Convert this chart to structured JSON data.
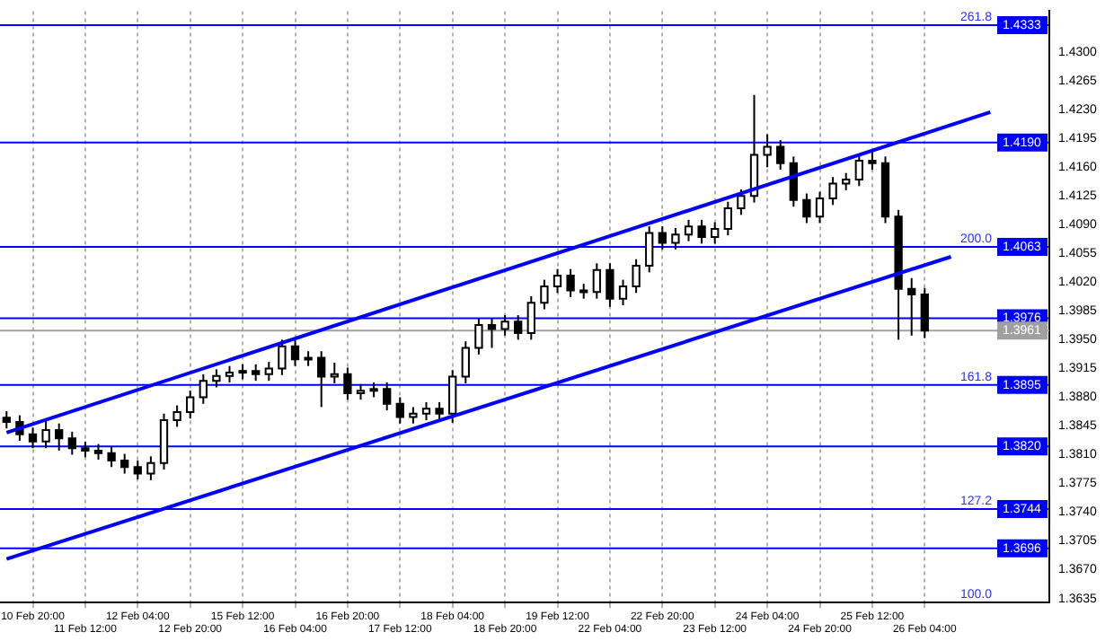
{
  "chart_data": {
    "type": "candlestick",
    "categories": [
      null,
      null,
      "10 Feb 20:00",
      null,
      null,
      null,
      "11 Feb 12:00",
      null,
      null,
      null,
      "12 Feb 04:00",
      null,
      null,
      null,
      "12 Feb 20:00",
      null,
      null,
      null,
      "15 Feb 12:00",
      null,
      null,
      null,
      "16 Feb 04:00",
      null,
      null,
      null,
      "16 Feb 20:00",
      null,
      null,
      null,
      "17 Feb 12:00",
      null,
      null,
      null,
      "18 Feb 04:00",
      null,
      null,
      null,
      "18 Feb 20:00",
      null,
      null,
      null,
      "19 Feb 12:00",
      null,
      null,
      null,
      "22 Feb 04:00",
      null,
      null,
      null,
      "22 Feb 20:00",
      null,
      null,
      null,
      "23 Feb 12:00",
      null,
      null,
      null,
      "24 Feb 04:00",
      null,
      null,
      null,
      "24 Feb 20:00",
      null,
      null,
      null,
      "25 Feb 12:00",
      null,
      null,
      null,
      "26 Feb 04:00",
      null,
      null,
      null,
      null,
      null,
      null,
      null,
      null,
      null
    ],
    "ohlc": [
      [
        1.3855,
        1.3863,
        1.3842,
        1.385
      ],
      [
        1.385,
        1.3858,
        1.3827,
        1.3835
      ],
      [
        1.3835,
        1.3843,
        1.3818,
        1.3826
      ],
      [
        1.3826,
        1.3853,
        1.3818,
        1.384
      ],
      [
        1.384,
        1.3848,
        1.3815,
        1.383
      ],
      [
        1.383,
        1.3838,
        1.381,
        1.3818
      ],
      [
        1.3818,
        1.3826,
        1.3807,
        1.3815
      ],
      [
        1.3815,
        1.3823,
        1.3804,
        1.3812
      ],
      [
        1.3812,
        1.382,
        1.3795,
        1.3803
      ],
      [
        1.3803,
        1.3811,
        1.3787,
        1.3795
      ],
      [
        1.3795,
        1.3803,
        1.378,
        1.3787
      ],
      [
        1.3787,
        1.3808,
        1.3779,
        1.38
      ],
      [
        1.38,
        1.386,
        1.3792,
        1.3852
      ],
      [
        1.3852,
        1.387,
        1.3844,
        1.3862
      ],
      [
        1.3862,
        1.3888,
        1.3854,
        1.388
      ],
      [
        1.388,
        1.3908,
        1.3872,
        1.39
      ],
      [
        1.39,
        1.3914,
        1.3892,
        1.3906
      ],
      [
        1.3906,
        1.3918,
        1.3898,
        1.391
      ],
      [
        1.391,
        1.392,
        1.3902,
        1.3912
      ],
      [
        1.3912,
        1.392,
        1.39,
        1.3908
      ],
      [
        1.3908,
        1.3923,
        1.39,
        1.3915
      ],
      [
        1.3915,
        1.395,
        1.3907,
        1.3942
      ],
      [
        1.3942,
        1.395,
        1.3918,
        1.3926
      ],
      [
        1.3926,
        1.3936,
        1.3918,
        1.3928
      ],
      [
        1.3928,
        1.3936,
        1.3868,
        1.3905
      ],
      [
        1.3905,
        1.3922,
        1.3897,
        1.3908
      ],
      [
        1.3908,
        1.3916,
        1.3877,
        1.3885
      ],
      [
        1.3885,
        1.3896,
        1.3877,
        1.3888
      ],
      [
        1.3888,
        1.3898,
        1.388,
        1.389
      ],
      [
        1.389,
        1.3898,
        1.3864,
        1.3872
      ],
      [
        1.3872,
        1.388,
        1.3848,
        1.3856
      ],
      [
        1.3856,
        1.3868,
        1.3848,
        1.386
      ],
      [
        1.386,
        1.3874,
        1.3852,
        1.3866
      ],
      [
        1.3866,
        1.3874,
        1.3852,
        1.386
      ],
      [
        1.386,
        1.3913,
        1.3849,
        1.3905
      ],
      [
        1.3905,
        1.3948,
        1.3897,
        1.394
      ],
      [
        1.394,
        1.3976,
        1.3932,
        1.3968
      ],
      [
        1.3968,
        1.3976,
        1.394,
        1.3963
      ],
      [
        1.3963,
        1.398,
        1.3955,
        1.3972
      ],
      [
        1.3972,
        1.398,
        1.395,
        1.3958
      ],
      [
        1.3958,
        1.4003,
        1.395,
        1.3995
      ],
      [
        1.3995,
        1.4023,
        1.3987,
        1.4015
      ],
      [
        1.4015,
        1.4036,
        1.4007,
        1.4028
      ],
      [
        1.4028,
        1.4036,
        1.4002,
        1.401
      ],
      [
        1.401,
        1.4018,
        1.4,
        1.4008
      ],
      [
        1.4008,
        1.4043,
        1.4,
        1.4035
      ],
      [
        1.4035,
        1.4043,
        1.399,
        1.4
      ],
      [
        1.4,
        1.4023,
        1.3992,
        1.4015
      ],
      [
        1.4015,
        1.4048,
        1.4007,
        1.404
      ],
      [
        1.404,
        1.4088,
        1.4032,
        1.408
      ],
      [
        1.408,
        1.4088,
        1.406,
        1.4068
      ],
      [
        1.4068,
        1.4086,
        1.406,
        1.4078
      ],
      [
        1.4078,
        1.4096,
        1.407,
        1.4088
      ],
      [
        1.4088,
        1.4096,
        1.4067,
        1.4075
      ],
      [
        1.4075,
        1.4093,
        1.4067,
        1.4085
      ],
      [
        1.4085,
        1.4118,
        1.4077,
        1.411
      ],
      [
        1.411,
        1.4133,
        1.4102,
        1.4125
      ],
      [
        1.4125,
        1.4248,
        1.4117,
        1.4175
      ],
      [
        1.4175,
        1.42,
        1.416,
        1.4185
      ],
      [
        1.4185,
        1.4193,
        1.4157,
        1.4165
      ],
      [
        1.4165,
        1.4173,
        1.4112,
        1.412
      ],
      [
        1.412,
        1.4128,
        1.4092,
        1.41
      ],
      [
        1.41,
        1.413,
        1.4092,
        1.4122
      ],
      [
        1.4122,
        1.4148,
        1.4114,
        1.414
      ],
      [
        1.414,
        1.4153,
        1.4132,
        1.4145
      ],
      [
        1.4145,
        1.4176,
        1.4137,
        1.4168
      ],
      [
        1.4168,
        1.418,
        1.4157,
        1.4165
      ],
      [
        1.4165,
        1.4173,
        1.4092,
        1.41
      ],
      [
        1.41,
        1.4108,
        1.395,
        1.4012
      ],
      [
        1.4012,
        1.4025,
        1.3955,
        1.4005
      ],
      [
        1.4005,
        1.4013,
        1.3952,
        1.3961
      ],
      null,
      null,
      null,
      null,
      null,
      null,
      null,
      null,
      null
    ],
    "series": [
      {
        "type": "line",
        "color": "#0000ff",
        "values": [
          1.3837,
          null,
          null,
          null,
          null,
          null,
          null,
          null,
          null,
          null,
          null,
          null,
          null,
          null,
          null,
          null,
          null,
          null,
          null,
          null,
          null,
          null,
          null,
          null,
          null,
          null,
          null,
          null,
          null,
          null,
          null,
          null,
          null,
          null,
          null,
          null,
          null,
          null,
          null,
          null,
          null,
          null,
          null,
          null,
          null,
          null,
          null,
          null,
          null,
          null,
          null,
          null,
          null,
          null,
          null,
          null,
          null,
          null,
          null,
          null,
          null,
          null,
          null,
          null,
          null,
          null,
          null,
          null,
          null,
          null,
          null,
          null,
          null,
          null,
          null,
          1.4227,
          null,
          null,
          null,
          null
        ]
      },
      {
        "type": "line",
        "color": "#0000ff",
        "values": [
          1.3683,
          null,
          null,
          null,
          null,
          null,
          null,
          null,
          null,
          null,
          null,
          null,
          null,
          null,
          null,
          null,
          null,
          null,
          null,
          null,
          null,
          null,
          null,
          null,
          null,
          null,
          null,
          null,
          null,
          null,
          null,
          null,
          null,
          null,
          null,
          null,
          null,
          null,
          null,
          null,
          null,
          null,
          null,
          null,
          null,
          null,
          null,
          null,
          null,
          null,
          null,
          null,
          null,
          null,
          null,
          null,
          null,
          null,
          null,
          null,
          null,
          null,
          null,
          null,
          null,
          null,
          null,
          null,
          null,
          null,
          null,
          null,
          1.4051,
          null,
          null,
          null,
          null,
          null,
          null,
          null
        ]
      }
    ],
    "ylim": [
      1.363,
      1.435
    ],
    "yticks": [
      {
        "value": 1.43,
        "label": "1.4300"
      },
      {
        "value": 1.4265,
        "label": "1.4265"
      },
      {
        "value": 1.423,
        "label": "1.4230"
      },
      {
        "value": 1.4195,
        "label": "1.4195"
      },
      {
        "value": 1.416,
        "label": "1.4160"
      },
      {
        "value": 1.4125,
        "label": "1.4125"
      },
      {
        "value": 1.409,
        "label": "1.4090"
      },
      {
        "value": 1.4055,
        "label": "1.4055"
      },
      {
        "value": 1.402,
        "label": "1.4020"
      },
      {
        "value": 1.3985,
        "label": "1.3985"
      },
      {
        "value": 1.395,
        "label": "1.3950"
      },
      {
        "value": 1.3915,
        "label": "1.3915"
      },
      {
        "value": 1.388,
        "label": "1.3880"
      },
      {
        "value": 1.3845,
        "label": "1.3845"
      },
      {
        "value": 1.381,
        "label": "1.3810"
      },
      {
        "value": 1.3775,
        "label": "1.3775"
      },
      {
        "value": 1.374,
        "label": "1.3740"
      },
      {
        "value": 1.3705,
        "label": "1.3705"
      },
      {
        "value": 1.367,
        "label": "1.3670"
      },
      {
        "value": 1.3635,
        "label": "1.3635"
      }
    ],
    "ref_lines": [
      {
        "axis": "y",
        "value": 1.4333,
        "label": "1.4333",
        "color": "#0000ff"
      },
      {
        "axis": "y",
        "value": 1.419,
        "label": "1.4190",
        "color": "#0000ff"
      },
      {
        "axis": "y",
        "value": 1.4063,
        "label": "1.4063",
        "color": "#0000ff"
      },
      {
        "axis": "y",
        "value": 1.3976,
        "label": "1.3976",
        "color": "#0000ff"
      },
      {
        "axis": "y",
        "value": 1.3961,
        "label": "1.3961",
        "color": "#a0a0a0"
      },
      {
        "axis": "y",
        "value": 1.3895,
        "label": "1.3895",
        "color": "#0000ff"
      },
      {
        "axis": "y",
        "value": 1.382,
        "label": "1.3820",
        "color": "#0000ff"
      },
      {
        "axis": "y",
        "value": 1.3744,
        "label": "1.3744",
        "color": "#0000ff"
      },
      {
        "axis": "y",
        "value": 1.3696,
        "label": "1.3696",
        "color": "#0000ff"
      }
    ],
    "annotations": [
      {
        "text": "261.8",
        "y": 1.4333
      },
      {
        "text": "200.0",
        "y": 1.4063
      },
      {
        "text": "161.8",
        "y": 1.3895
      },
      {
        "text": "127.2",
        "y": 1.3744
      },
      "100.0"
    ],
    "grid": "x",
    "marker": "none",
    "line_style": "solid",
    "legend": false
  }
}
